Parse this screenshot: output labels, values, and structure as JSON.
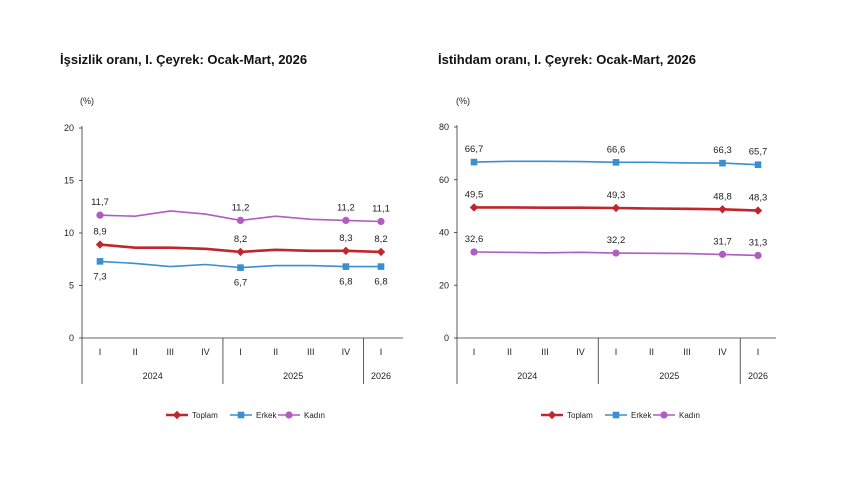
{
  "chart_data": [
    {
      "type": "line",
      "title": "İşsizlik oranı, I. Çeyrek: Ocak-Mart, 2026",
      "unit": "(%)",
      "ylim": [
        0,
        20
      ],
      "yticks": [
        "0",
        "5",
        "10",
        "15",
        "20"
      ],
      "quarters": [
        "I",
        "II",
        "III",
        "IV",
        "I",
        "II",
        "III",
        "IV",
        "I"
      ],
      "years": [
        {
          "label": "2024",
          "start": 0,
          "end": 3
        },
        {
          "label": "2025",
          "start": 4,
          "end": 7
        },
        {
          "label": "2026",
          "start": 8,
          "end": 8
        }
      ],
      "label_indices": [
        0,
        4,
        7,
        8
      ],
      "series": [
        {
          "name": "Toplam",
          "color": "#c0272d",
          "marker": "diamond",
          "values": [
            8.9,
            8.6,
            8.6,
            8.5,
            8.2,
            8.4,
            8.3,
            8.3,
            8.2
          ],
          "labels": [
            "8,9",
            "8,2",
            "8,3",
            "8,2"
          ],
          "label_pos": "above"
        },
        {
          "name": "Erkek",
          "color": "#3a8fd0",
          "marker": "square",
          "values": [
            7.3,
            7.1,
            6.8,
            7.0,
            6.7,
            6.9,
            6.9,
            6.8,
            6.8
          ],
          "labels": [
            "7,3",
            "6,7",
            "6,8",
            "6,8"
          ],
          "label_pos": "below"
        },
        {
          "name": "Kadın",
          "color": "#b05cc0",
          "marker": "circle",
          "values": [
            11.7,
            11.6,
            12.1,
            11.8,
            11.2,
            11.6,
            11.3,
            11.2,
            11.1
          ],
          "labels": [
            "11,7",
            "11,2",
            "11,2",
            "11,1"
          ],
          "label_pos": "above"
        }
      ]
    },
    {
      "type": "line",
      "title": "İstihdam oranı, I. Çeyrek: Ocak-Mart, 2026",
      "unit": "(%)",
      "ylim": [
        0,
        80
      ],
      "yticks": [
        "0",
        "20",
        "40",
        "60",
        "80"
      ],
      "quarters": [
        "I",
        "II",
        "III",
        "IV",
        "I",
        "II",
        "III",
        "IV",
        "I"
      ],
      "years": [
        {
          "label": "2024",
          "start": 0,
          "end": 3
        },
        {
          "label": "2025",
          "start": 4,
          "end": 7
        },
        {
          "label": "2026",
          "start": 8,
          "end": 8
        }
      ],
      "label_indices": [
        0,
        4,
        7,
        8
      ],
      "series": [
        {
          "name": "Toplam",
          "color": "#c0272d",
          "marker": "diamond",
          "values": [
            49.5,
            49.5,
            49.4,
            49.4,
            49.3,
            49.1,
            49.0,
            48.8,
            48.3
          ],
          "labels": [
            "49,5",
            "49,3",
            "48,8",
            "48,3"
          ],
          "label_pos": "above"
        },
        {
          "name": "Erkek",
          "color": "#3a8fd0",
          "marker": "square",
          "values": [
            66.7,
            67.0,
            67.0,
            66.9,
            66.6,
            66.6,
            66.4,
            66.3,
            65.7
          ],
          "labels": [
            "66,7",
            "66,6",
            "66,3",
            "65,7"
          ],
          "label_pos": "above"
        },
        {
          "name": "Kadın",
          "color": "#b05cc0",
          "marker": "circle",
          "values": [
            32.6,
            32.5,
            32.3,
            32.5,
            32.2,
            32.1,
            32.0,
            31.7,
            31.3
          ],
          "labels": [
            "32,6",
            "32,2",
            "31,7",
            "31,3"
          ],
          "label_pos": "above"
        }
      ]
    }
  ]
}
